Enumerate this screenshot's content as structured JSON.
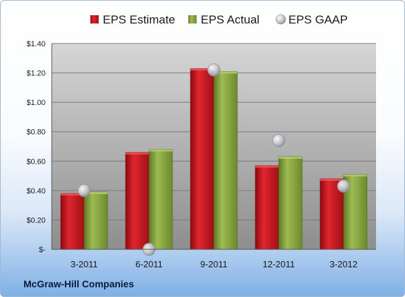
{
  "chart_data": {
    "type": "bar",
    "categories": [
      "3-2011",
      "6-2011",
      "9-2011",
      "12-2011",
      "3-2012"
    ],
    "series": [
      {
        "name": "EPS Estimate",
        "kind": "bar",
        "color": "#c0141c",
        "values": [
          0.38,
          0.66,
          1.23,
          0.57,
          0.48
        ]
      },
      {
        "name": "EPS Actual",
        "kind": "bar",
        "color": "#7f9c3a",
        "values": [
          0.39,
          0.68,
          1.21,
          0.63,
          0.51
        ]
      },
      {
        "name": "EPS GAAP",
        "kind": "marker",
        "color": "#b8bcc4",
        "values": [
          0.4,
          0.0,
          1.22,
          0.74,
          0.43
        ]
      }
    ],
    "ylim": [
      0,
      1.4
    ],
    "yticks": [
      {
        "value": 0,
        "label": "$-"
      },
      {
        "value": 0.2,
        "label": "$0.20"
      },
      {
        "value": 0.4,
        "label": "$0.40"
      },
      {
        "value": 0.6,
        "label": "$0.60"
      },
      {
        "value": 0.8,
        "label": "$0.80"
      },
      {
        "value": 1.0,
        "label": "$1.00"
      },
      {
        "value": 1.2,
        "label": "$1.20"
      },
      {
        "value": 1.4,
        "label": "$1.40"
      }
    ],
    "grid": true,
    "legend": "top",
    "company": "McGraw-Hill Companies"
  }
}
